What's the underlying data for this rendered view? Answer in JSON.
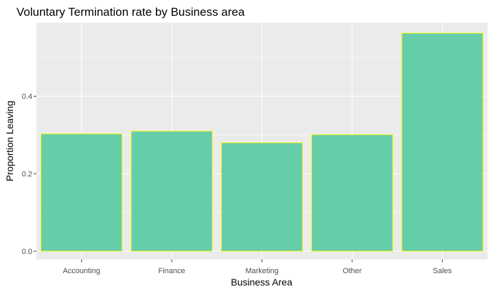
{
  "chart_data": {
    "type": "bar",
    "title": "Voluntary Termination rate by Business area",
    "xlabel": "Business Area",
    "ylabel": "Proportion Leaving",
    "categories": [
      "Accounting",
      "Finance",
      "Marketing",
      "Other",
      "Sales"
    ],
    "values": [
      0.303,
      0.31,
      0.28,
      0.301,
      0.563
    ],
    "ylim": [
      0,
      0.59
    ],
    "yticks": [
      0.0,
      0.2,
      0.4
    ],
    "ytick_labels": [
      "0.0",
      "0.2",
      "0.4"
    ],
    "grid": true,
    "colors": {
      "bar_fill": "#66cdaa",
      "bar_stroke": "#ffff00",
      "panel": "#ebebeb",
      "grid": "#ffffff"
    }
  }
}
